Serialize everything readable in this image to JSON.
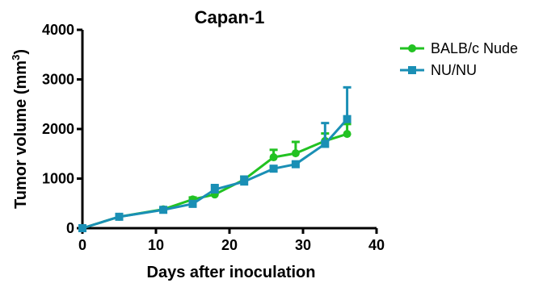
{
  "chart_data": {
    "type": "line",
    "title": "Capan-1",
    "xlabel": "Days after inoculation",
    "ylabel": "Tumor volume (mm",
    "ylabel_superscript": "3",
    "ylabel_suffix": ")",
    "xlim": [
      0,
      40
    ],
    "ylim": [
      0,
      4000
    ],
    "xticks": [
      0,
      10,
      20,
      30,
      40
    ],
    "yticks": [
      0,
      1000,
      2000,
      3000,
      4000
    ],
    "grid": false,
    "legend_position": "right",
    "series": [
      {
        "name": "BALB/c Nude",
        "color": "#22c222",
        "marker": "circle",
        "x": [
          0,
          5,
          11,
          15,
          18,
          22,
          26,
          29,
          33,
          36
        ],
        "y": [
          0,
          230,
          380,
          580,
          680,
          980,
          1430,
          1510,
          1760,
          1900
        ],
        "err": [
          0,
          20,
          20,
          40,
          40,
          60,
          150,
          230,
          150,
          200
        ]
      },
      {
        "name": "NU/NU",
        "color": "#1a8fb5",
        "marker": "square",
        "x": [
          0,
          5,
          11,
          15,
          18,
          22,
          26,
          29,
          33,
          36
        ],
        "y": [
          0,
          230,
          370,
          490,
          780,
          940,
          1200,
          1290,
          1700,
          2200
        ],
        "err": [
          0,
          20,
          20,
          30,
          90,
          100,
          40,
          40,
          420,
          640
        ]
      }
    ]
  }
}
